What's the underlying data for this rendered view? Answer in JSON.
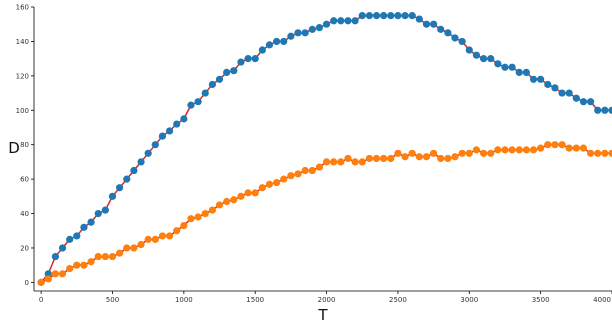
{
  "chart_data": {
    "type": "line",
    "title": "",
    "xlabel": "T",
    "ylabel": "D",
    "xlim": [
      -50,
      4000
    ],
    "ylim": [
      -5,
      160
    ],
    "xticks": [
      0,
      500,
      1000,
      1500,
      2000,
      2500,
      3000,
      3500,
      4000
    ],
    "yticks": [
      0,
      20,
      40,
      60,
      80,
      100,
      120,
      140,
      160
    ],
    "grid": false,
    "legend": "none",
    "line_color": "#d62728",
    "series": [
      {
        "color": "#1f77b4",
        "x": [
          0,
          50,
          100,
          150,
          200,
          250,
          300,
          350,
          400,
          450,
          500,
          550,
          600,
          650,
          700,
          750,
          800,
          850,
          900,
          950,
          1000,
          1050,
          1100,
          1150,
          1200,
          1250,
          1300,
          1350,
          1400,
          1450,
          1500,
          1550,
          1600,
          1650,
          1700,
          1750,
          1800,
          1850,
          1900,
          1950,
          2000,
          2050,
          2100,
          2150,
          2200,
          2250,
          2300,
          2350,
          2400,
          2450,
          2500,
          2550,
          2600,
          2650,
          2700,
          2750,
          2800,
          2850,
          2900,
          2950,
          3000,
          3050,
          3100,
          3150,
          3200,
          3250,
          3300,
          3350,
          3400,
          3450,
          3500,
          3550,
          3600,
          3650,
          3700,
          3750,
          3800,
          3850,
          3900,
          3950,
          4000
        ],
        "y": [
          0,
          5,
          15,
          20,
          25,
          27,
          32,
          35,
          40,
          42,
          50,
          55,
          60,
          65,
          70,
          75,
          80,
          85,
          88,
          92,
          95,
          103,
          105,
          110,
          115,
          118,
          122,
          123,
          128,
          130,
          130,
          135,
          138,
          140,
          140,
          143,
          145,
          145,
          147,
          148,
          150,
          152,
          152,
          152,
          152,
          155,
          155,
          155,
          155,
          155,
          155,
          155,
          155,
          153,
          150,
          150,
          147,
          145,
          142,
          140,
          135,
          132,
          130,
          130,
          127,
          125,
          125,
          122,
          122,
          118,
          118,
          115,
          113,
          110,
          110,
          107,
          105,
          105,
          100,
          100,
          100
        ]
      },
      {
        "color": "#ff7f0e",
        "x": [
          0,
          50,
          100,
          150,
          200,
          250,
          300,
          350,
          400,
          450,
          500,
          550,
          600,
          650,
          700,
          750,
          800,
          850,
          900,
          950,
          1000,
          1050,
          1100,
          1150,
          1200,
          1250,
          1300,
          1350,
          1400,
          1450,
          1500,
          1550,
          1600,
          1650,
          1700,
          1750,
          1800,
          1850,
          1900,
          1950,
          2000,
          2050,
          2100,
          2150,
          2200,
          2250,
          2300,
          2350,
          2400,
          2450,
          2500,
          2550,
          2600,
          2650,
          2700,
          2750,
          2800,
          2850,
          2900,
          2950,
          3000,
          3050,
          3100,
          3150,
          3200,
          3250,
          3300,
          3350,
          3400,
          3450,
          3500,
          3550,
          3600,
          3650,
          3700,
          3750,
          3800,
          3850,
          3900,
          3950,
          4000
        ],
        "y": [
          0,
          2,
          5,
          5,
          8,
          10,
          10,
          12,
          15,
          15,
          15,
          17,
          20,
          20,
          22,
          25,
          25,
          27,
          27,
          30,
          33,
          37,
          38,
          40,
          42,
          45,
          47,
          48,
          50,
          52,
          52,
          55,
          57,
          58,
          60,
          62,
          63,
          65,
          65,
          67,
          70,
          70,
          70,
          72,
          70,
          70,
          72,
          72,
          72,
          72,
          75,
          73,
          75,
          73,
          73,
          75,
          72,
          72,
          73,
          75,
          75,
          77,
          75,
          75,
          77,
          77,
          77,
          77,
          77,
          77,
          78,
          80,
          80,
          80,
          78,
          78,
          78,
          75,
          75,
          75,
          75
        ]
      }
    ]
  }
}
